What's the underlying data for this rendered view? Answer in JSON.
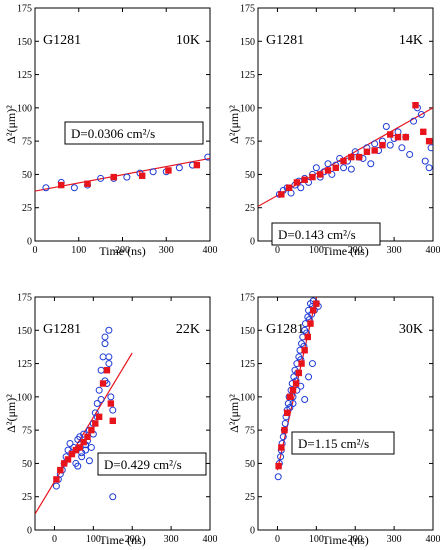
{
  "chart_data": [
    {
      "type": "scatter",
      "sample_label": "G1281",
      "temperature_label": "10K",
      "diffusion_label": "D=0.0306 cm²/s",
      "xlabel": "Time (ns)",
      "ylabel": "Δ²(μm)²",
      "xlim": [
        0,
        400
      ],
      "ylim": [
        0,
        175
      ],
      "xticks": [
        0,
        100,
        200,
        300,
        400
      ],
      "yticks": [
        0,
        25,
        50,
        75,
        100,
        125,
        150,
        175
      ],
      "fit_line": {
        "x": [
          0,
          400
        ],
        "y": [
          37.5,
          62
        ]
      },
      "series": [
        {
          "marker": "open-circle",
          "color": "#1f3bd6",
          "x": [
            25,
            60,
            90,
            120,
            150,
            180,
            210,
            240,
            270,
            300,
            330,
            360,
            395
          ],
          "y": [
            40,
            44,
            40,
            42,
            47,
            47,
            48,
            51,
            52,
            52,
            55,
            57,
            63
          ]
        },
        {
          "marker": "filled-square",
          "color": "#e8141c",
          "x": [
            60,
            120,
            180,
            245,
            305,
            370
          ],
          "y": [
            42,
            43,
            48,
            49,
            53,
            57
          ]
        }
      ]
    },
    {
      "type": "scatter",
      "sample_label": "G1281",
      "temperature_label": "14K",
      "diffusion_label": "D=0.143  cm²/s",
      "xlabel": "Time (ns)",
      "ylabel": "Δ²(μm)²",
      "xlim": [
        -50,
        400
      ],
      "ylim": [
        0,
        175
      ],
      "xticks": [
        0,
        100,
        200,
        300,
        400
      ],
      "yticks": [
        0,
        25,
        50,
        75,
        100,
        125,
        150,
        175
      ],
      "fit_line": {
        "x": [
          -50,
          400
        ],
        "y": [
          26,
          100
        ]
      },
      "series": [
        {
          "marker": "open-circle",
          "color": "#1f3bd6",
          "x": [
            5,
            15,
            25,
            35,
            45,
            55,
            60,
            70,
            80,
            90,
            100,
            110,
            120,
            130,
            140,
            150,
            160,
            170,
            180,
            190,
            200,
            210,
            220,
            230,
            240,
            250,
            260,
            270,
            280,
            290,
            300,
            310,
            320,
            330,
            340,
            350,
            360,
            370,
            380,
            390,
            395
          ],
          "y": [
            35,
            38,
            40,
            36,
            42,
            45,
            40,
            47,
            44,
            50,
            55,
            48,
            52,
            58,
            50,
            57,
            62,
            55,
            60,
            54,
            67,
            63,
            62,
            70,
            58,
            73,
            68,
            75,
            86,
            72,
            77,
            82,
            70,
            78,
            65,
            90,
            100,
            95,
            60,
            55,
            70
          ]
        },
        {
          "marker": "filled-square",
          "color": "#e8141c",
          "x": [
            10,
            30,
            50,
            70,
            90,
            110,
            130,
            150,
            170,
            190,
            210,
            230,
            250,
            270,
            290,
            310,
            330,
            355,
            375,
            390
          ],
          "y": [
            35,
            40,
            44,
            46,
            48,
            50,
            53,
            55,
            60,
            63,
            63,
            67,
            68,
            72,
            80,
            78,
            78,
            102,
            82,
            75
          ]
        }
      ]
    },
    {
      "type": "scatter",
      "sample_label": "G1281",
      "temperature_label": "22K",
      "diffusion_label": "D=0.429  cm²/s",
      "xlabel": "Time (ns)",
      "ylabel": "Δ²(μm)²",
      "xlim": [
        -50,
        400
      ],
      "ylim": [
        0,
        175
      ],
      "xticks": [
        0,
        100,
        200,
        300,
        400
      ],
      "yticks": [
        0,
        25,
        50,
        75,
        100,
        125,
        150,
        175
      ],
      "fit_line": {
        "x": [
          -50,
          200
        ],
        "y": [
          12,
          133
        ]
      },
      "series": [
        {
          "marker": "open-circle",
          "color": "#1f3bd6",
          "x": [
            5,
            10,
            15,
            20,
            25,
            30,
            35,
            40,
            45,
            50,
            55,
            60,
            65,
            70,
            75,
            80,
            85,
            90,
            95,
            100,
            105,
            110,
            115,
            120,
            125,
            130,
            135,
            140,
            145,
            150,
            60,
            70,
            80,
            90,
            100,
            110,
            120,
            130,
            140,
            150,
            130,
            140
          ],
          "y": [
            33,
            38,
            42,
            45,
            50,
            55,
            60,
            65,
            58,
            62,
            50,
            68,
            70,
            55,
            72,
            60,
            67,
            75,
            62,
            80,
            88,
            95,
            105,
            120,
            130,
            140,
            110,
            150,
            100,
            25,
            48,
            58,
            64,
            52,
            72,
            85,
            98,
            112,
            125,
            90,
            145,
            130
          ]
        },
        {
          "marker": "filled-square",
          "color": "#e8141c",
          "x": [
            5,
            15,
            25,
            35,
            45,
            55,
            65,
            75,
            85,
            95,
            105,
            115,
            125,
            135,
            145,
            150
          ],
          "y": [
            38,
            45,
            50,
            53,
            57,
            60,
            62,
            66,
            70,
            75,
            80,
            85,
            110,
            120,
            95,
            82
          ]
        }
      ]
    },
    {
      "type": "scatter",
      "sample_label": "G1281",
      "temperature_label": "30K",
      "diffusion_label": "D=1.15 cm²/s",
      "xlabel": "Time (ns)",
      "ylabel": "Δ²(μm)²",
      "xlim": [
        -50,
        400
      ],
      "ylim": [
        0,
        175
      ],
      "xticks": [
        0,
        100,
        200,
        300,
        400
      ],
      "yticks": [
        0,
        25,
        50,
        75,
        100,
        125,
        150,
        175
      ],
      "fit_line": {
        "x": [
          0,
          100
        ],
        "y": [
          45,
          175
        ]
      },
      "series": [
        {
          "marker": "open-circle",
          "color": "#1f3bd6",
          "x": [
            2,
            5,
            8,
            10,
            12,
            15,
            18,
            20,
            22,
            25,
            28,
            30,
            32,
            35,
            38,
            40,
            42,
            45,
            48,
            50,
            52,
            55,
            58,
            60,
            62,
            65,
            68,
            70,
            72,
            75,
            78,
            80,
            82,
            85,
            88,
            90,
            92,
            95,
            100,
            105,
            60,
            70,
            80,
            90,
            50,
            40
          ],
          "y": [
            40,
            50,
            55,
            60,
            65,
            70,
            75,
            80,
            85,
            90,
            95,
            100,
            92,
            105,
            110,
            100,
            115,
            120,
            112,
            125,
            118,
            130,
            135,
            128,
            140,
            145,
            138,
            150,
            155,
            148,
            160,
            165,
            158,
            170,
            162,
            168,
            172,
            165,
            170,
            168,
            108,
            98,
            115,
            125,
            105,
            95
          ]
        },
        {
          "marker": "filled-square",
          "color": "#e8141c",
          "x": [
            3,
            10,
            18,
            25,
            32,
            40,
            48,
            55,
            62,
            70,
            78,
            85,
            92,
            100
          ],
          "y": [
            48,
            62,
            75,
            88,
            100,
            105,
            110,
            118,
            125,
            135,
            145,
            155,
            165,
            170
          ]
        }
      ]
    }
  ]
}
